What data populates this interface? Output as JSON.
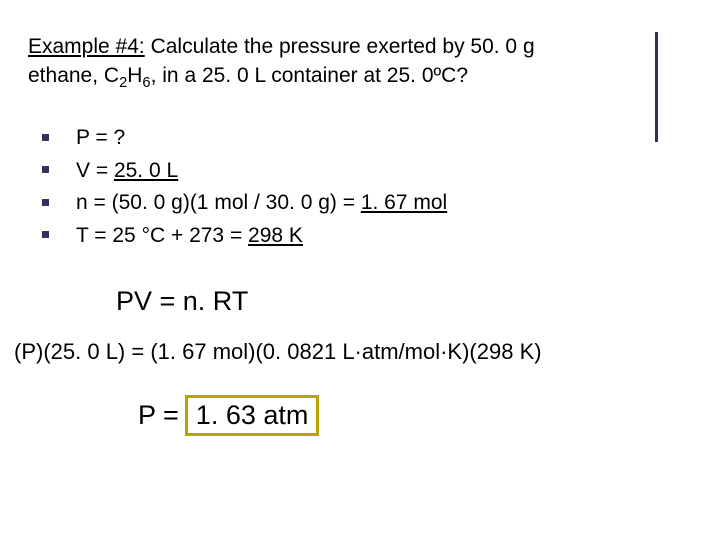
{
  "title": {
    "label_underlined": "Example #4:",
    "rest_line1": " Calculate the pressure exerted by 50. 0 g",
    "line2_pre": "ethane, C",
    "sub1": "2",
    "mid": "H",
    "sub2": "6",
    "line2_post": ", in a 25. 0 L container at 25. 0ºC?"
  },
  "bullets": {
    "b1": "P = ?",
    "b2_pre": "V = ",
    "b2_val": "25. 0 L",
    "b3_pre": "n = (50. 0 g)(1 mol / 30. 0 g) = ",
    "b3_val": "1. 67 mol",
    "b4_pre": "T = 25 °C + 273 = ",
    "b4_val": "298 K"
  },
  "eq1": "PV = n. RT",
  "eq2": "(P)(25. 0 L) = (1. 67 mol)(0. 0821 L·atm/mol·K)(298 K)",
  "eq3_pre": "P = ",
  "eq3_box": "1. 63 atm",
  "colors": {
    "accent": "#3b2e5a",
    "highlight_border": "#b8a600",
    "text": "#000000",
    "background": "#ffffff"
  }
}
